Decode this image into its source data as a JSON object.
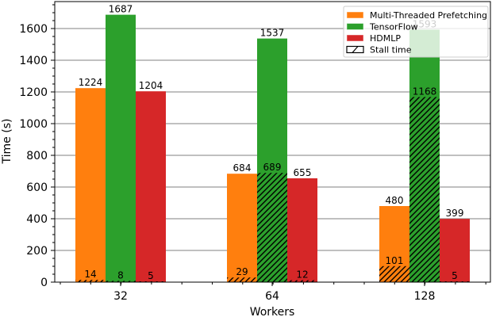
{
  "chart_data": {
    "type": "bar",
    "title": "",
    "xlabel": "Workers",
    "ylabel": "Time (s)",
    "categories": [
      "32",
      "64",
      "128"
    ],
    "ylim": [
      0,
      1770
    ],
    "yticks": [
      0,
      200,
      400,
      600,
      800,
      1000,
      1200,
      1400,
      1600
    ],
    "grid": "horizontal",
    "legend_position": "upper right",
    "series": [
      {
        "name": "Multi-Threaded Prefetching",
        "color": "#ff7f0e",
        "values": [
          1224,
          684,
          480
        ],
        "stall": [
          14,
          29,
          101
        ]
      },
      {
        "name": "TensorFlow",
        "color": "#2ca02c",
        "values": [
          1687,
          1537,
          1593
        ],
        "stall": [
          8,
          689,
          1168
        ]
      },
      {
        "name": "HDMLP",
        "color": "#d62728",
        "values": [
          1204,
          655,
          399
        ],
        "stall": [
          5,
          12,
          5
        ]
      }
    ],
    "legend": [
      {
        "label": "Multi-Threaded Prefetching",
        "style": "patch",
        "color": "#ff7f0e"
      },
      {
        "label": "TensorFlow",
        "style": "patch",
        "color": "#2ca02c"
      },
      {
        "label": "HDMLP",
        "style": "patch",
        "color": "#d62728"
      },
      {
        "label": "Stall time",
        "style": "hatch",
        "color": "#ffffff"
      }
    ]
  }
}
